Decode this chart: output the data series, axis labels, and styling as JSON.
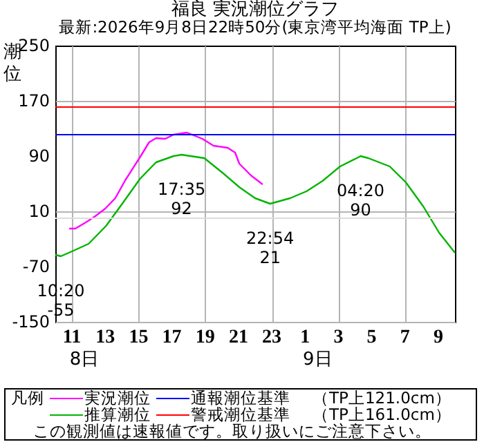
{
  "chart_data": {
    "type": "line",
    "title": "福良 実況潮位グラフ",
    "subtitle": "最新:2026年9月8日22時50分(東京湾平均海面 TP上)",
    "ylabel": "潮位",
    "legend_title": "凡例",
    "xlim": [
      "2026-09-08T10:00",
      "2026-09-09T10:00"
    ],
    "xticks": [
      {
        "value": "2026-09-08T11:00",
        "label": "11"
      },
      {
        "value": "2026-09-08T13:00",
        "label": "13"
      },
      {
        "value": "2026-09-08T15:00",
        "label": "15"
      },
      {
        "value": "2026-09-08T17:00",
        "label": "17"
      },
      {
        "value": "2026-09-08T19:00",
        "label": "19"
      },
      {
        "value": "2026-09-08T21:00",
        "label": "21"
      },
      {
        "value": "2026-09-08T23:00",
        "label": "23"
      },
      {
        "value": "2026-09-09T01:00",
        "label": "1"
      },
      {
        "value": "2026-09-09T03:00",
        "label": "3"
      },
      {
        "value": "2026-09-09T05:00",
        "label": "5"
      },
      {
        "value": "2026-09-09T07:00",
        "label": "7"
      },
      {
        "value": "2026-09-09T09:00",
        "label": "9"
      }
    ],
    "ylim": [
      -150,
      250
    ],
    "yticks": [
      -150,
      -70,
      10,
      90,
      170,
      250
    ],
    "grid": true,
    "legend": "bottom",
    "series": [
      {
        "name": "実況潮位",
        "color": "#ff00ff",
        "x": [
          "2026-09-08T10:50",
          "2026-09-08T11:12",
          "2026-09-08T11:54",
          "2026-09-08T12:24",
          "2026-09-08T13:00",
          "2026-09-08T13:36",
          "2026-09-08T14:12",
          "2026-09-08T15:06",
          "2026-09-08T15:38",
          "2026-09-08T16:03",
          "2026-09-08T16:36",
          "2026-09-08T17:06",
          "2026-09-08T17:54",
          "2026-09-08T18:50",
          "2026-09-08T19:30",
          "2026-09-08T20:21",
          "2026-09-08T20:48",
          "2026-09-08T21:03",
          "2026-09-08T21:45",
          "2026-09-08T22:27"
        ],
        "values": [
          -15,
          -15,
          -5,
          3,
          14,
          29,
          55,
          89,
          110,
          116,
          115,
          121,
          124,
          115,
          105,
          102,
          95,
          79,
          62,
          49
        ]
      },
      {
        "name": "推算潮位",
        "color": "#00b400",
        "x": [
          "2026-09-08T10:00",
          "2026-09-08T10:20",
          "2026-09-08T11:00",
          "2026-09-08T12:00",
          "2026-09-08T13:03",
          "2026-09-08T14:03",
          "2026-09-08T15:05",
          "2026-09-08T16:03",
          "2026-09-08T17:06",
          "2026-09-08T17:35",
          "2026-09-08T18:57",
          "2026-09-08T20:05",
          "2026-09-08T21:03",
          "2026-09-08T22:00",
          "2026-09-08T22:54",
          "2026-09-09T00:06",
          "2026-09-09T01:05",
          "2026-09-09T02:03",
          "2026-09-09T03:06",
          "2026-09-09T04:06",
          "2026-09-09T04:20",
          "2026-09-09T04:48",
          "2026-09-09T06:05",
          "2026-09-09T07:03",
          "2026-09-09T08:06",
          "2026-09-09T09:03",
          "2026-09-09T10:00"
        ],
        "values": [
          -53,
          -55,
          -48,
          -37,
          -11,
          22,
          57,
          81,
          90,
          92,
          87,
          65,
          45,
          29,
          21,
          29,
          39,
          54,
          75,
          87,
          90,
          87,
          75,
          52,
          17,
          -21,
          -50
        ]
      }
    ],
    "ref_lines": [
      {
        "axis": "y",
        "value": 121,
        "label": "通報潮位基準",
        "color": "#0000ff"
      },
      {
        "axis": "y",
        "value": 161,
        "label": "警戒潮位基準",
        "color": "#ff0000"
      },
      {
        "axis": "y",
        "value": 0,
        "color": "#dddddd"
      }
    ],
    "annotations": [
      {
        "text": "17:35\n92",
        "x": "2026-09-08T17:35",
        "y": 92
      },
      {
        "text": "22:54\n21",
        "x": "2026-09-08T22:54",
        "y": 21
      },
      {
        "text": "10:20\n-55",
        "x": "2026-09-08T10:20",
        "y": -55
      },
      {
        "text": "04:20\n90",
        "x": "2026-09-09T04:20",
        "y": 90
      },
      "8日",
      "9日",
      "（TP上121.0cm）",
      "（TP上161.0cm）",
      "この観測値は速報値です。取り扱いにご注意下さい。"
    ]
  }
}
